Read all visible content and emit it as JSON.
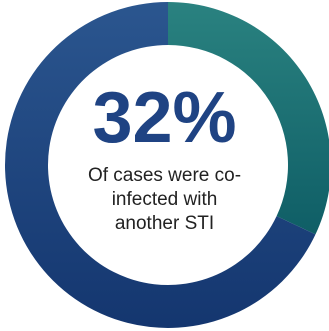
{
  "chart_data": {
    "type": "pie",
    "variant": "donut",
    "slices": [
      {
        "label": "Co-infected with another STI",
        "value": 32,
        "color": "#1d6f73"
      },
      {
        "label": "",
        "value": 68,
        "color": "#1f4383"
      }
    ],
    "center_value": "32%",
    "center_caption": [
      "Of cases were co-",
      "infected with",
      "another STI"
    ]
  }
}
